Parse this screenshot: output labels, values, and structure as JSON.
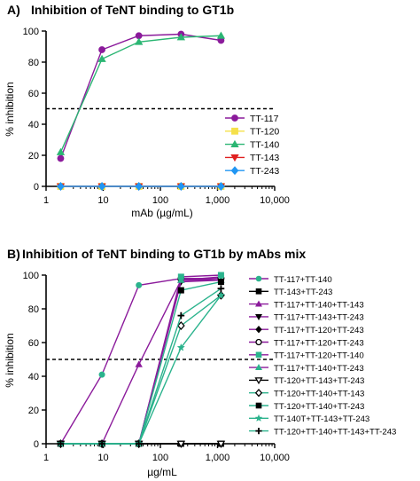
{
  "chart_data": [
    {
      "type": "line",
      "panel_label": "A)",
      "title": "Inhibition of TeNT binding to GT1b",
      "xlabel": "mAb (µg/mL)",
      "ylabel": "% inhibition",
      "x_scale": "log",
      "xlim": [
        1,
        10000
      ],
      "ylim": [
        0,
        100
      ],
      "x_ticks": [
        1,
        10,
        100,
        1000,
        10000
      ],
      "x_tick_labels": [
        "1",
        "10",
        "100",
        "1,000",
        "10,000"
      ],
      "y_ticks": [
        0,
        20,
        40,
        60,
        80,
        100
      ],
      "y_tick_labels": [
        "0",
        "20",
        "40",
        "60",
        "80",
        "100"
      ],
      "reference_line": 50,
      "grid": false,
      "legend_position": "right",
      "series": [
        {
          "name": "TT-117",
          "color": "#8B1A9B",
          "marker": "circle",
          "x": [
            1.8,
            9.5,
            42,
            230,
            1150
          ],
          "y": [
            18,
            88,
            97,
            98,
            94
          ]
        },
        {
          "name": "TT-120",
          "color": "#F5E04A",
          "marker": "square",
          "x": [
            1.8,
            9.5,
            42,
            230,
            1150
          ],
          "y": [
            0,
            0,
            0,
            0,
            0
          ]
        },
        {
          "name": "TT-140",
          "color": "#2BB673",
          "marker": "triangle-up",
          "x": [
            1.8,
            9.5,
            42,
            230,
            1150
          ],
          "y": [
            22,
            82,
            93,
            96,
            97
          ]
        },
        {
          "name": "TT-143",
          "color": "#E02020",
          "marker": "triangle-down",
          "x": [
            1.8,
            9.5,
            42,
            230,
            1150
          ],
          "y": [
            0,
            0,
            0,
            0,
            0
          ]
        },
        {
          "name": "TT-243",
          "color": "#2196F3",
          "marker": "diamond",
          "x": [
            1.8,
            9.5,
            42,
            230,
            1150
          ],
          "y": [
            0,
            0,
            0,
            0,
            0
          ]
        }
      ]
    },
    {
      "type": "line",
      "panel_label": "B)",
      "title": "Inhibition of TeNT binding to GT1b by mAbs mix",
      "xlabel": "µg/mL",
      "ylabel": "% inhibition",
      "x_scale": "log",
      "xlim": [
        1,
        10000
      ],
      "ylim": [
        0,
        100
      ],
      "x_ticks": [
        1,
        10,
        100,
        1000,
        10000
      ],
      "x_tick_labels": [
        "1",
        "10",
        "100",
        "1,000",
        "10,000"
      ],
      "y_ticks": [
        0,
        20,
        40,
        60,
        80,
        100
      ],
      "y_tick_labels": [
        "0",
        "20",
        "40",
        "60",
        "80",
        "100"
      ],
      "reference_line": 50,
      "grid": false,
      "legend_position": "right",
      "series": [
        {
          "name": "TT-117+TT-140",
          "color": "#2BB38D",
          "line_color": "#8B1A9B",
          "marker": "circle",
          "x": [
            1.8,
            9.5,
            42,
            230,
            1150
          ],
          "y": [
            0,
            41,
            94,
            98,
            98
          ]
        },
        {
          "name": "TT-143+TT-243",
          "color": "#000000",
          "marker": "square",
          "x": [
            1.8,
            9.5,
            42,
            230,
            1150
          ],
          "y": [
            0,
            0,
            0,
            0,
            0
          ]
        },
        {
          "name": "TT-117+TT-140+TT-143",
          "color": "#8B1A9B",
          "marker": "triangle-up",
          "x": [
            1.8,
            9.5,
            42,
            230,
            1150
          ],
          "y": [
            0,
            0,
            47,
            97,
            99
          ]
        },
        {
          "name": "TT-117+TT-143+TT-243",
          "color": "#000000",
          "line_color": "#8B1A9B",
          "marker": "triangle-down",
          "x": [
            1.8,
            9.5,
            42,
            230,
            1150
          ],
          "y": [
            0,
            0,
            0,
            96,
            97
          ]
        },
        {
          "name": "TT-117+TT-120+TT-243",
          "color": "#000000",
          "line_color": "#8B1A9B",
          "marker": "diamond",
          "x": [
            1.8,
            9.5,
            42,
            230,
            1150
          ],
          "y": [
            0,
            0,
            0,
            97,
            98
          ]
        },
        {
          "name": "TT-117+TT-120+TT-243",
          "color": "#000000",
          "line_color": "#8B1A9B",
          "marker": "circle-open",
          "x": [
            1.8,
            9.5,
            42,
            230,
            1150
          ],
          "y": [
            0,
            0,
            0,
            98,
            98
          ]
        },
        {
          "name": "TT-117+TT-120+TT-140",
          "color": "#2BB38D",
          "line_color": "#8B1A9B",
          "marker": "square",
          "x": [
            1.8,
            9.5,
            42,
            230,
            1150
          ],
          "y": [
            0,
            0,
            0,
            99,
            100
          ]
        },
        {
          "name": "TT-117+TT-140+TT-243",
          "color": "#2BB38D",
          "line_color": "#8B1A9B",
          "marker": "triangle-up",
          "x": [
            1.8,
            9.5,
            42,
            230,
            1150
          ],
          "y": [
            0,
            0,
            0,
            97,
            97
          ]
        },
        {
          "name": "TT-120+TT-143+TT-243",
          "color": "#000000",
          "marker": "triangle-down-open",
          "x": [
            1.8,
            9.5,
            42,
            230,
            1150
          ],
          "y": [
            0,
            0,
            0,
            0,
            0
          ]
        },
        {
          "name": "TT-120+TT-140+TT-143",
          "color": "#000000",
          "line_color": "#2BB38D",
          "marker": "diamond-open",
          "x": [
            1.8,
            9.5,
            42,
            230,
            1150
          ],
          "y": [
            0,
            0,
            0,
            70,
            88
          ]
        },
        {
          "name": "TT-120+TT-140+TT-243",
          "color": "#000000",
          "line_color": "#2BB38D",
          "marker": "square",
          "x": [
            1.8,
            9.5,
            42,
            230,
            1150
          ],
          "y": [
            0,
            0,
            0,
            91,
            96
          ]
        },
        {
          "name": "TT-140T+TT-143+TT-243",
          "color": "#2BB38D",
          "line_color": "#2BB38D",
          "marker": "star",
          "x": [
            1.8,
            9.5,
            42,
            230,
            1150
          ],
          "y": [
            0,
            0,
            0,
            57,
            88
          ]
        },
        {
          "name": "TT-120+TT-140+TT-143+TT-243",
          "color": "#000000",
          "line_color": "#2BB38D",
          "marker": "plus",
          "x": [
            1.8,
            9.5,
            42,
            230,
            1150
          ],
          "y": [
            0,
            0,
            0,
            76,
            92
          ]
        }
      ]
    }
  ]
}
